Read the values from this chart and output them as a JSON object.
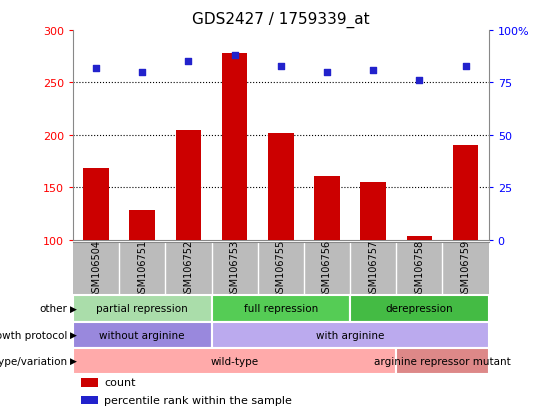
{
  "title": "GDS2427 / 1759339_at",
  "samples": [
    "GSM106504",
    "GSM106751",
    "GSM106752",
    "GSM106753",
    "GSM106755",
    "GSM106756",
    "GSM106757",
    "GSM106758",
    "GSM106759"
  ],
  "counts": [
    168,
    128,
    205,
    278,
    202,
    161,
    155,
    103,
    190
  ],
  "percentile_ranks": [
    82,
    80,
    85,
    88,
    83,
    80,
    81,
    76,
    83
  ],
  "ylim_left": [
    100,
    300
  ],
  "ylim_right": [
    0,
    100
  ],
  "yticks_left": [
    100,
    150,
    200,
    250,
    300
  ],
  "yticks_right": [
    0,
    25,
    50,
    75,
    100
  ],
  "bar_color": "#cc0000",
  "dot_color": "#2222cc",
  "bar_bottom": 100,
  "annotation_rows": [
    {
      "label": "other",
      "segments": [
        {
          "text": "partial repression",
          "start": 0,
          "end": 3,
          "color": "#aaddaa"
        },
        {
          "text": "full repression",
          "start": 3,
          "end": 6,
          "color": "#55cc55"
        },
        {
          "text": "derepression",
          "start": 6,
          "end": 9,
          "color": "#44bb44"
        }
      ]
    },
    {
      "label": "growth protocol",
      "segments": [
        {
          "text": "without arginine",
          "start": 0,
          "end": 3,
          "color": "#9988dd"
        },
        {
          "text": "with arginine",
          "start": 3,
          "end": 9,
          "color": "#bbaaee"
        }
      ]
    },
    {
      "label": "genotype/variation",
      "segments": [
        {
          "text": "wild-type",
          "start": 0,
          "end": 7,
          "color": "#ffaaaa"
        },
        {
          "text": "arginine repressor mutant",
          "start": 7,
          "end": 9,
          "color": "#dd8888"
        }
      ]
    }
  ],
  "legend_items": [
    {
      "color": "#cc0000",
      "label": "count"
    },
    {
      "color": "#2222cc",
      "label": "percentile rank within the sample"
    }
  ],
  "xtick_bg_color": "#bbbbbb",
  "spine_color": "#888888"
}
